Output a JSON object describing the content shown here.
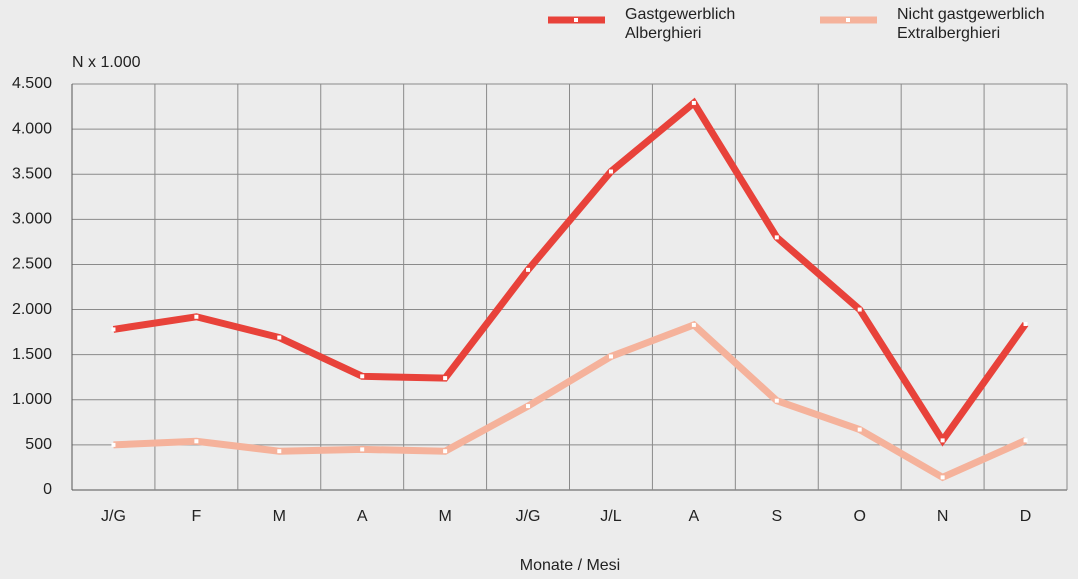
{
  "chart_data": {
    "type": "line",
    "y_label": "N x 1.000",
    "x_label": "Monate / Mesi",
    "categories": [
      "J/G",
      "F",
      "M",
      "A",
      "M",
      "J/G",
      "J/L",
      "A",
      "S",
      "O",
      "N",
      "D"
    ],
    "series": [
      {
        "name": "Gastgewerblich\nAlberghieri",
        "color": "#e8423a",
        "values": [
          1780,
          1920,
          1690,
          1260,
          1240,
          2440,
          3530,
          4290,
          2800,
          2000,
          550,
          1840
        ]
      },
      {
        "name": "Nicht gastgewerblich\nExtralberghieri",
        "color": "#f5b29b",
        "values": [
          500,
          540,
          430,
          450,
          430,
          930,
          1480,
          1830,
          990,
          670,
          140,
          550
        ]
      }
    ],
    "ylim": [
      0,
      4500
    ],
    "yticks": [
      0,
      {
        "value": 500,
        "label": "500"
      },
      {
        "value": 1000,
        "label": "1.000"
      },
      {
        "value": 1500,
        "label": "1.500"
      },
      {
        "value": 2000,
        "label": "2.000"
      },
      {
        "value": 2500,
        "label": "2.500"
      },
      {
        "value": 3000,
        "label": "3.000"
      },
      {
        "value": 3500,
        "label": "3.500"
      },
      {
        "value": 4000,
        "label": "4.000"
      },
      {
        "value": 4500,
        "label": "4.500"
      }
    ],
    "grid": true
  }
}
